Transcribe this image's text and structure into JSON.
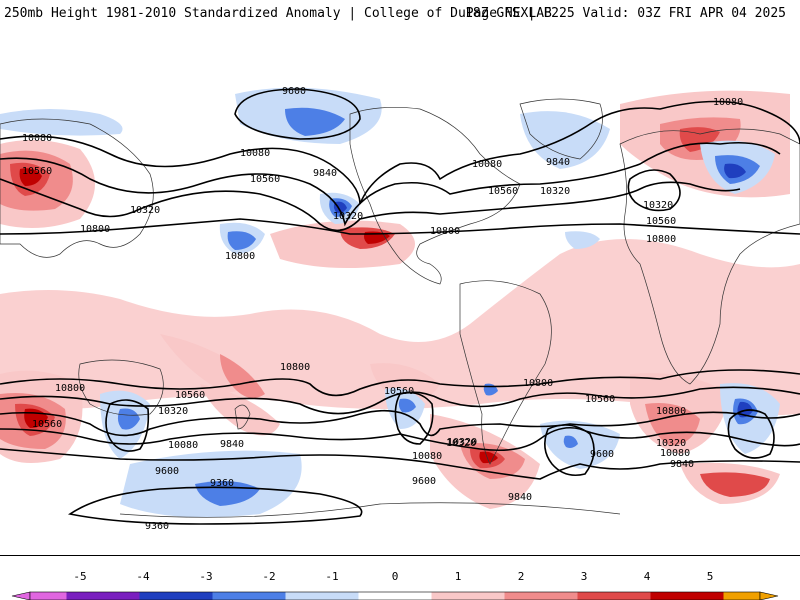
{
  "header": {
    "title_left": "250mb Height 1981-2010 Standardized Anomaly | College of DuPage NEXLAB",
    "title_right": "18Z GFS | F225 Valid: 03Z FRI APR 04 2025"
  },
  "colors": {
    "neg5": "#e066e0",
    "neg4": "#7a1fbf",
    "neg3": "#1f3fbf",
    "neg2": "#4d7fe6",
    "neg1": "#c8dcf8",
    "zero": "#ffffff",
    "pos1": "#f9c8c8",
    "pos2": "#f08c8c",
    "pos3": "#e04a4a",
    "pos4": "#c00000",
    "pos5": "#f0a000",
    "contour": "#000000",
    "coast": "#333333"
  },
  "colorbar": {
    "ticks": [
      "-5",
      "-4",
      "-3",
      "-2",
      "-1",
      "0",
      "1",
      "2",
      "3",
      "4",
      "5"
    ]
  },
  "contours": {
    "labels": [
      {
        "text": "9600"
      },
      {
        "text": "10080"
      },
      {
        "text": "10560"
      },
      {
        "text": "10080"
      },
      {
        "text": "9840"
      },
      {
        "text": "10560"
      },
      {
        "text": "10320"
      },
      {
        "text": "10800"
      },
      {
        "text": "10320"
      },
      {
        "text": "10800"
      },
      {
        "text": "10080"
      },
      {
        "text": "9840"
      },
      {
        "text": "10560"
      },
      {
        "text": "10320"
      },
      {
        "text": "10080"
      },
      {
        "text": "10320"
      },
      {
        "text": "10560"
      },
      {
        "text": "10800"
      },
      {
        "text": "10800"
      },
      {
        "text": "10800"
      },
      {
        "text": "10560"
      },
      {
        "text": "10320"
      },
      {
        "text": "10800"
      },
      {
        "text": "10560"
      },
      {
        "text": "10320"
      },
      {
        "text": "10080"
      },
      {
        "text": "9840"
      },
      {
        "text": "9600"
      },
      {
        "text": "9360"
      },
      {
        "text": "9360"
      },
      {
        "text": "10560"
      },
      {
        "text": "10800"
      },
      {
        "text": "10320"
      },
      {
        "text": "10080"
      },
      {
        "text": "9600"
      },
      {
        "text": "9840"
      },
      {
        "text": "10560"
      },
      {
        "text": "10800"
      },
      {
        "text": "10320"
      },
      {
        "text": "10080"
      },
      {
        "text": "9840"
      },
      {
        "text": "9600"
      }
    ]
  }
}
